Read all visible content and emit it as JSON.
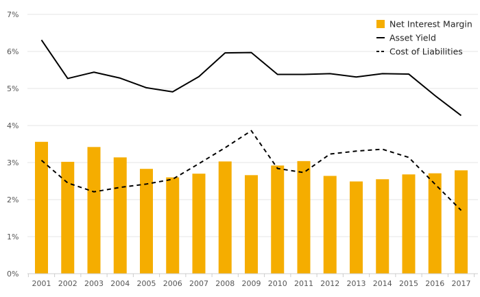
{
  "chart_data": {
    "type": "bar+line",
    "title": "",
    "xlabel": "",
    "ylabel": "",
    "ylim": [
      0,
      7
    ],
    "y_ticks": [
      "0%",
      "1%",
      "2%",
      "3%",
      "4%",
      "5%",
      "6%",
      "7%"
    ],
    "grid": true,
    "legend_position": "top-right",
    "categories": [
      "2001",
      "2002",
      "2003",
      "2004",
      "2005",
      "2006",
      "2007",
      "2008",
      "2009",
      "2010",
      "2011",
      "2012",
      "2013",
      "2014",
      "2015",
      "2016",
      "2017"
    ],
    "series": [
      {
        "name": "Net Interest Margin",
        "kind": "bar",
        "color": "#f5ad00",
        "values": [
          3.56,
          3.02,
          3.42,
          3.14,
          2.83,
          2.6,
          2.7,
          3.03,
          2.66,
          2.92,
          3.04,
          2.64,
          2.49,
          2.55,
          2.68,
          2.71,
          2.79
        ]
      },
      {
        "name": "Asset Yield",
        "kind": "line",
        "style": "solid",
        "color": "#000000",
        "values": [
          6.31,
          5.27,
          5.44,
          5.28,
          5.02,
          4.91,
          5.32,
          5.96,
          5.97,
          5.38,
          5.38,
          5.4,
          5.31,
          5.4,
          5.39,
          4.81,
          4.27
        ]
      },
      {
        "name": "Cost of Liabilities",
        "kind": "line",
        "style": "dashed",
        "color": "#000000",
        "values": [
          3.06,
          2.45,
          2.21,
          2.33,
          2.42,
          2.55,
          2.97,
          3.4,
          3.86,
          2.84,
          2.73,
          3.23,
          3.31,
          3.36,
          3.14,
          2.42,
          1.71
        ]
      }
    ]
  }
}
